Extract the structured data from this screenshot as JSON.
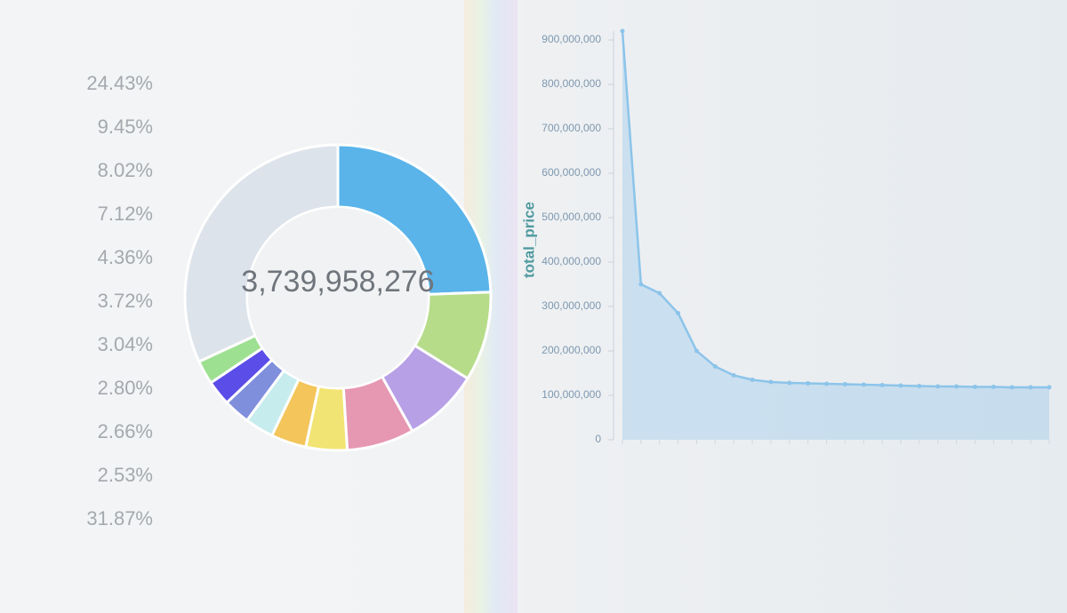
{
  "chart_data": [
    {
      "type": "pie",
      "donut": true,
      "center_label": "3,739,958,276",
      "values": [
        24.43,
        9.45,
        8.02,
        7.12,
        4.36,
        3.72,
        3.04,
        2.8,
        2.66,
        2.53,
        31.87
      ],
      "value_labels": [
        "24.43%",
        "9.45%",
        "8.02%",
        "7.12%",
        "4.36%",
        "3.72%",
        "3.04%",
        "2.80%",
        "2.66%",
        "2.53%",
        "31.87%"
      ],
      "colors": [
        "#5ab4ea",
        "#b6dc8a",
        "#b7a0e6",
        "#e697b2",
        "#f2e474",
        "#f3c55a",
        "#c6ecee",
        "#7f8fdc",
        "#5a4de8",
        "#9ee092",
        "#dde3ea"
      ]
    },
    {
      "type": "line",
      "area": true,
      "y_label": "total_price",
      "categories": [
        null,
        null,
        null,
        null,
        null,
        null,
        null,
        null,
        null,
        null,
        null,
        null,
        null,
        null,
        null,
        null,
        null,
        null,
        null,
        null,
        null,
        null,
        null,
        null
      ],
      "series": [
        {
          "color": "#8cc4ea",
          "values": [
            920000000,
            350000000,
            330000000,
            285000000,
            200000000,
            165000000,
            145000000,
            135000000,
            130000000,
            128000000,
            127000000,
            126000000,
            125000000,
            124000000,
            123000000,
            122000000,
            121000000,
            120000000,
            120000000,
            119000000,
            119000000,
            118000000,
            118000000,
            118000000
          ]
        }
      ],
      "ylim": [
        0,
        900000000
      ],
      "yticks": [
        0,
        {
          "value": 100000000,
          "label": "100,000,000"
        },
        {
          "value": 200000000,
          "label": "200,000,000"
        },
        {
          "value": 300000000,
          "label": "300,000,000"
        },
        {
          "value": 400000000,
          "label": "400,000,000"
        },
        {
          "value": 500000000,
          "label": "500,000,000"
        },
        {
          "value": 600000000,
          "label": "600,000,000"
        },
        {
          "value": 700000000,
          "label": "700,000,000"
        },
        {
          "value": 800000000,
          "label": "800,000,000"
        },
        {
          "value": 900000000,
          "label": "900,000,000"
        }
      ]
    }
  ]
}
